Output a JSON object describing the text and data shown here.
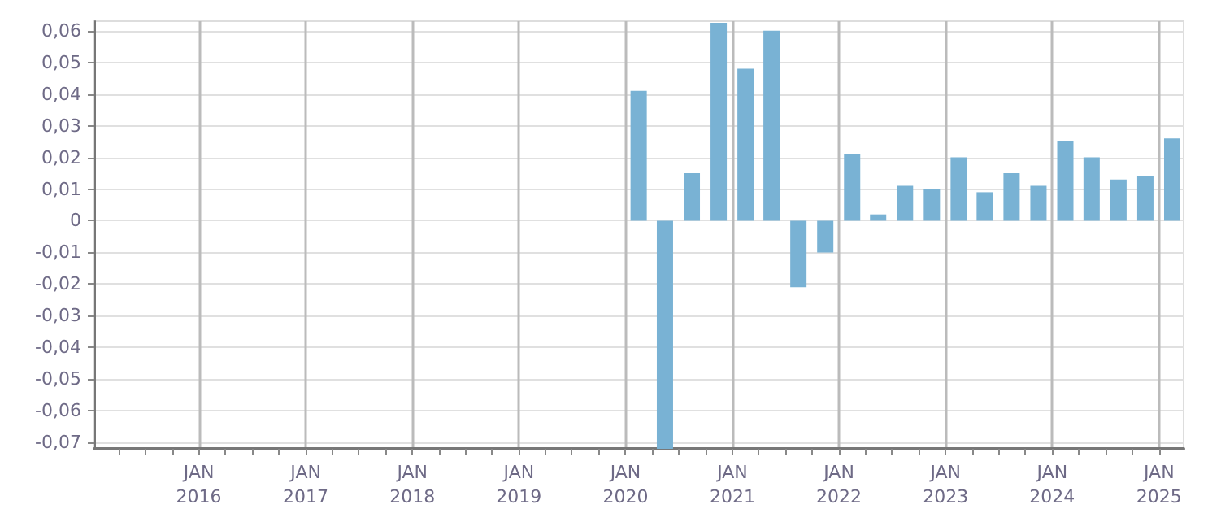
{
  "chart_data": {
    "type": "bar",
    "x": [
      "2020-02-15",
      "2020-05-15",
      "2020-08-15",
      "2020-11-15",
      "2021-02-15",
      "2021-05-15",
      "2021-08-15",
      "2021-11-15",
      "2022-02-15",
      "2022-05-15",
      "2022-08-15",
      "2022-11-15",
      "2023-02-15",
      "2023-05-15",
      "2023-08-15",
      "2023-11-15",
      "2024-02-15",
      "2024-05-15",
      "2024-08-15",
      "2024-11-15",
      "2025-02-15"
    ],
    "values": [
      0.041,
      -0.072,
      0.015,
      0.0625,
      0.048,
      0.06,
      -0.021,
      -0.01,
      0.021,
      0.002,
      0.011,
      0.01,
      0.02,
      0.009,
      0.015,
      0.011,
      0.025,
      0.02,
      0.013,
      0.014,
      0.026
    ],
    "color": "#79b2d4",
    "xlim": [
      "2015-01-08",
      "2025-03-26"
    ],
    "xticks": [
      {
        "value": "2015-04",
        "label": null
      },
      {
        "value": "2015-07",
        "label": null
      },
      {
        "value": "2015-10",
        "label": null
      },
      {
        "value": "2016-01",
        "label": "JAN\n2016"
      },
      {
        "value": "2016-04",
        "label": null
      },
      {
        "value": "2016-07",
        "label": null
      },
      {
        "value": "2016-10",
        "label": null
      },
      {
        "value": "2017-01",
        "label": "JAN\n2017"
      },
      {
        "value": "2017-04",
        "label": null
      },
      {
        "value": "2017-07",
        "label": null
      },
      {
        "value": "2017-10",
        "label": null
      },
      {
        "value": "2018-01",
        "label": "JAN\n2018"
      },
      {
        "value": "2018-04",
        "label": null
      },
      {
        "value": "2018-07",
        "label": null
      },
      {
        "value": "2018-10",
        "label": null
      },
      {
        "value": "2019-01",
        "label": "JAN\n2019"
      },
      {
        "value": "2019-04",
        "label": null
      },
      {
        "value": "2019-07",
        "label": null
      },
      {
        "value": "2019-10",
        "label": null
      },
      {
        "value": "2020-01",
        "label": "JAN\n2020"
      },
      {
        "value": "2020-04",
        "label": null
      },
      {
        "value": "2020-07",
        "label": null
      },
      {
        "value": "2020-10",
        "label": null
      },
      {
        "value": "2021-01",
        "label": "JAN\n2021"
      },
      {
        "value": "2021-04",
        "label": null
      },
      {
        "value": "2021-07",
        "label": null
      },
      {
        "value": "2021-10",
        "label": null
      },
      {
        "value": "2022-01",
        "label": "JAN\n2022"
      },
      {
        "value": "2022-04",
        "label": null
      },
      {
        "value": "2022-07",
        "label": null
      },
      {
        "value": "2022-10",
        "label": null
      },
      {
        "value": "2023-01",
        "label": "JAN\n2023"
      },
      {
        "value": "2023-04",
        "label": null
      },
      {
        "value": "2023-07",
        "label": null
      },
      {
        "value": "2023-10",
        "label": null
      },
      {
        "value": "2024-01",
        "label": "JAN\n2024"
      },
      {
        "value": "2024-04",
        "label": null
      },
      {
        "value": "2024-07",
        "label": null
      },
      {
        "value": "2024-10",
        "label": null
      },
      {
        "value": "2025-01",
        "label": "JAN\n2025"
      }
    ],
    "ylim": [
      -0.072,
      0.063
    ],
    "yticks": [
      {
        "value": -0.07,
        "label": "-0,07"
      },
      {
        "value": -0.06,
        "label": "-0,06"
      },
      {
        "value": -0.05,
        "label": "-0,05"
      },
      {
        "value": -0.04,
        "label": "-0,04"
      },
      {
        "value": -0.03,
        "label": "-0,03"
      },
      {
        "value": -0.02,
        "label": "-0,02"
      },
      {
        "value": -0.01,
        "label": "-0,01"
      },
      {
        "value": 0,
        "label": "0"
      },
      {
        "value": 0.01,
        "label": "0,01"
      },
      {
        "value": 0.02,
        "label": "0,02"
      },
      {
        "value": 0.03,
        "label": "0,03"
      },
      {
        "value": 0.04,
        "label": "0,04"
      },
      {
        "value": 0.05,
        "label": "0,05"
      },
      {
        "value": 0.06,
        "label": "0,06"
      }
    ],
    "grid": true
  }
}
